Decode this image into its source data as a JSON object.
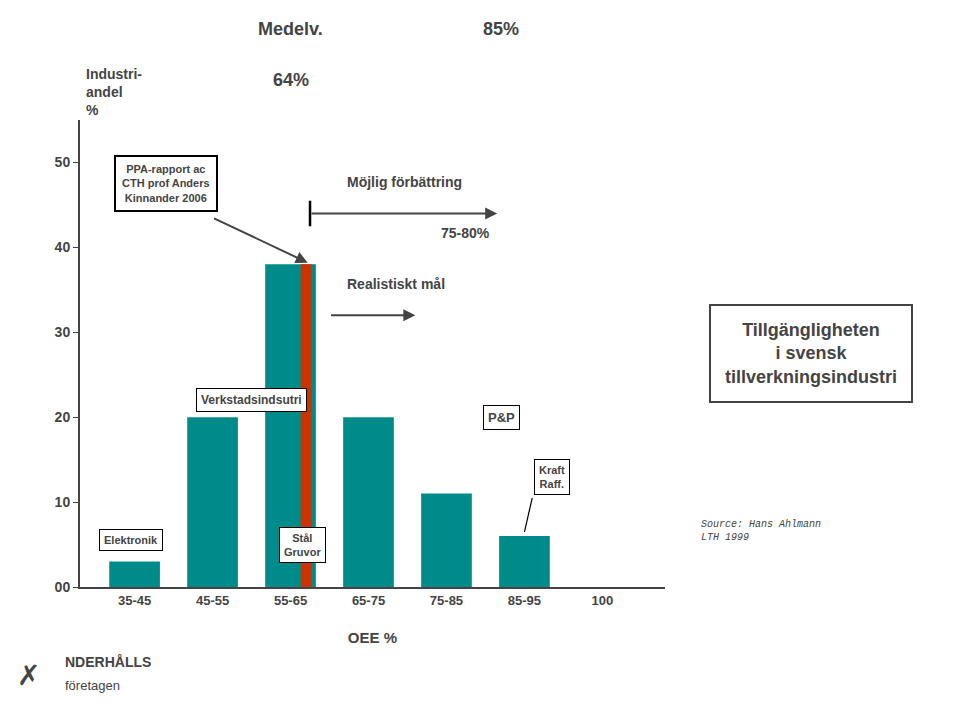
{
  "chart_data": {
    "type": "bar",
    "title": "Tillgängligheten\ni svensk\ntillverkningsindustri",
    "xlabel": "OEE %",
    "ylabel": "Industri-\nandel\n%",
    "categories": [
      "35-45",
      "45-55",
      "55-65",
      "65-75",
      "75-85",
      "85-95",
      "100"
    ],
    "series": [
      {
        "color": "#008B8B",
        "values": [
          3,
          20,
          38,
          20,
          11,
          6,
          null
        ]
      },
      {
        "color": "#CC3300",
        "values": [
          null,
          null,
          38,
          null,
          null,
          null,
          null
        ]
      }
    ],
    "ylim": [
      0,
      55
    ],
    "yticks": [
      {
        "value": 0,
        "label": "00"
      },
      10,
      20,
      30,
      40,
      50
    ],
    "grid": false,
    "annotations": [
      "Medelv.",
      "64%",
      "85%",
      "Möjlig förbättring",
      "Realistiskt mål",
      "75-80%",
      "PPA-rapport ac\nCTH prof Anders\nKinnander 2006",
      "Elektronik",
      "Verkstadsindsutri",
      "Stål\nGruvor",
      "P&P",
      "Kraft\nRaff.",
      "Source: Hans Ahlmann\nLTH 1999",
      "✗",
      "NDERHÅLLS",
      "företagen"
    ]
  }
}
